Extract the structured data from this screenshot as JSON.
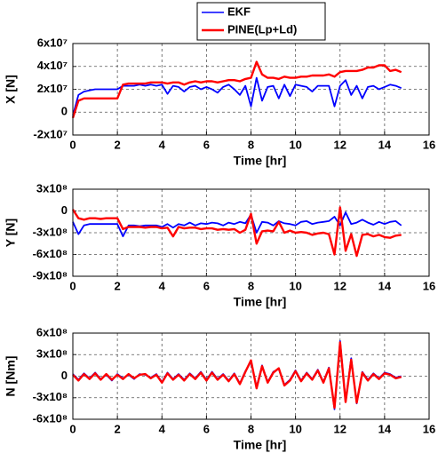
{
  "chart_data": [
    {
      "type": "line",
      "ylabel": "X [N]",
      "xlabel": "Time [hr]",
      "xlim": [
        0,
        16
      ],
      "xticks": [
        0,
        2,
        4,
        6,
        8,
        10,
        12,
        14,
        16
      ],
      "ylim": [
        -20000000.0,
        60000000.0
      ],
      "yticks": [
        {
          "value": -20000000.0,
          "label": "-2x10⁷"
        },
        0,
        {
          "value": 20000000.0,
          "label": "2x10⁷"
        },
        {
          "value": 40000000.0,
          "label": "4x10⁷"
        },
        {
          "value": 60000000.0,
          "label": "6x10⁷"
        }
      ],
      "grid": true,
      "x": [
        0,
        0.25,
        0.5,
        0.75,
        1,
        1.25,
        1.5,
        1.75,
        2,
        2.25,
        2.5,
        2.75,
        3,
        3.25,
        3.5,
        3.75,
        4,
        4.25,
        4.5,
        4.75,
        5,
        5.25,
        5.5,
        5.75,
        6,
        6.25,
        6.5,
        6.75,
        7,
        7.25,
        7.5,
        7.75,
        8,
        8.25,
        8.5,
        8.75,
        9,
        9.25,
        9.5,
        9.75,
        10,
        10.25,
        10.5,
        10.75,
        11,
        11.25,
        11.5,
        11.75,
        12,
        12.25,
        12.5,
        12.75,
        13,
        13.25,
        13.5,
        13.75,
        14,
        14.25,
        14.5,
        14.75
      ],
      "series": [
        {
          "name": "EKF",
          "color": "#0000ff",
          "values": [
            -3000000.0,
            15000000.0,
            18000000.0,
            19000000.0,
            20000000.0,
            20000000.0,
            20000000.0,
            20000000.0,
            20000000.0,
            23000000.0,
            23000000.0,
            23000000.0,
            24000000.0,
            23000000.0,
            24000000.0,
            23000000.0,
            24000000.0,
            16000000.0,
            23000000.0,
            22000000.0,
            18000000.0,
            22000000.0,
            23000000.0,
            20000000.0,
            22000000.0,
            20000000.0,
            17000000.0,
            22000000.0,
            24000000.0,
            20000000.0,
            15000000.0,
            23000000.0,
            5000000.0,
            30000000.0,
            10000000.0,
            22000000.0,
            23000000.0,
            12000000.0,
            24000000.0,
            14000000.0,
            24000000.0,
            23000000.0,
            22000000.0,
            18000000.0,
            23000000.0,
            23000000.0,
            23000000.0,
            5000000.0,
            23000000.0,
            28000000.0,
            15000000.0,
            23000000.0,
            12000000.0,
            22000000.0,
            23000000.0,
            20000000.0,
            22000000.0,
            24000000.0,
            23000000.0,
            21000000.0
          ]
        },
        {
          "name": "PINE(Lp+Ld)",
          "color": "#ff0000",
          "values": [
            -5000000.0,
            10000000.0,
            12000000.0,
            12000000.0,
            12000000.0,
            12000000.0,
            12000000.0,
            12000000.0,
            12000000.0,
            24000000.0,
            25000000.0,
            25000000.0,
            25000000.0,
            25000000.0,
            26000000.0,
            26000000.0,
            26000000.0,
            25000000.0,
            26000000.0,
            26000000.0,
            24000000.0,
            26000000.0,
            27000000.0,
            26000000.0,
            27000000.0,
            27000000.0,
            26000000.0,
            27000000.0,
            28000000.0,
            28000000.0,
            27000000.0,
            29000000.0,
            30000000.0,
            44000000.0,
            33000000.0,
            30000000.0,
            30000000.0,
            29000000.0,
            31000000.0,
            30000000.0,
            30000000.0,
            31000000.0,
            31000000.0,
            32000000.0,
            32000000.0,
            32000000.0,
            33000000.0,
            31000000.0,
            35000000.0,
            36000000.0,
            36000000.0,
            36000000.0,
            37000000.0,
            39000000.0,
            39000000.0,
            41000000.0,
            41000000.0,
            36000000.0,
            37000000.0,
            35000000.0
          ]
        }
      ]
    },
    {
      "type": "line",
      "ylabel": "Y [N]",
      "xlabel": "Time [hr]",
      "xlim": [
        0,
        16
      ],
      "xticks": [
        0,
        2,
        4,
        6,
        8,
        10,
        12,
        14,
        16
      ],
      "ylim": [
        -900000000.0,
        300000000.0
      ],
      "yticks": [
        {
          "value": -900000000.0,
          "label": "-9x10⁸"
        },
        {
          "value": -600000000.0,
          "label": "-6x10⁸"
        },
        {
          "value": -300000000.0,
          "label": "-3x10⁸"
        },
        0,
        {
          "value": 300000000.0,
          "label": "3x10⁸"
        }
      ],
      "grid": true,
      "x": [
        0,
        0.25,
        0.5,
        0.75,
        1,
        1.25,
        1.5,
        1.75,
        2,
        2.25,
        2.5,
        2.75,
        3,
        3.25,
        3.5,
        3.75,
        4,
        4.25,
        4.5,
        4.75,
        5,
        5.25,
        5.5,
        5.75,
        6,
        6.25,
        6.5,
        6.75,
        7,
        7.25,
        7.5,
        7.75,
        8,
        8.25,
        8.5,
        8.75,
        9,
        9.25,
        9.5,
        9.75,
        10,
        10.25,
        10.5,
        10.75,
        11,
        11.25,
        11.5,
        11.75,
        12,
        12.25,
        12.5,
        12.75,
        13,
        13.25,
        13.5,
        13.75,
        14,
        14.25,
        14.5,
        14.75
      ],
      "series": [
        {
          "color": "#0000ff",
          "values": [
            -150000000.0,
            -320000000.0,
            -200000000.0,
            -180000000.0,
            -180000000.0,
            -180000000.0,
            -180000000.0,
            -180000000.0,
            -180000000.0,
            -350000000.0,
            -200000000.0,
            -200000000.0,
            -210000000.0,
            -200000000.0,
            -200000000.0,
            -200000000.0,
            -220000000.0,
            -180000000.0,
            -230000000.0,
            -180000000.0,
            -200000000.0,
            -160000000.0,
            -200000000.0,
            -170000000.0,
            -180000000.0,
            -160000000.0,
            -170000000.0,
            -200000000.0,
            -160000000.0,
            -180000000.0,
            -150000000.0,
            -170000000.0,
            -50000000.0,
            -300000000.0,
            -150000000.0,
            -160000000.0,
            -200000000.0,
            -140000000.0,
            -170000000.0,
            -180000000.0,
            -200000000.0,
            -150000000.0,
            -140000000.0,
            -180000000.0,
            -160000000.0,
            -150000000.0,
            -140000000.0,
            -80000000.0,
            -200000000.0,
            -20000000.0,
            -180000000.0,
            -160000000.0,
            -120000000.0,
            -160000000.0,
            -190000000.0,
            -150000000.0,
            -180000000.0,
            -150000000.0,
            -140000000.0,
            -200000000.0
          ]
        },
        {
          "color": "#ff0000",
          "values": [
            20000000.0,
            -100000000.0,
            -120000000.0,
            -100000000.0,
            -100000000.0,
            -110000000.0,
            -100000000.0,
            -100000000.0,
            -100000000.0,
            -250000000.0,
            -220000000.0,
            -220000000.0,
            -220000000.0,
            -230000000.0,
            -220000000.0,
            -220000000.0,
            -240000000.0,
            -230000000.0,
            -350000000.0,
            -220000000.0,
            -240000000.0,
            -230000000.0,
            -230000000.0,
            -250000000.0,
            -240000000.0,
            -240000000.0,
            -260000000.0,
            -250000000.0,
            -260000000.0,
            -250000000.0,
            -300000000.0,
            -260000000.0,
            -40000000.0,
            -450000000.0,
            -280000000.0,
            -270000000.0,
            -280000000.0,
            -150000000.0,
            -300000000.0,
            -270000000.0,
            -300000000.0,
            -290000000.0,
            -300000000.0,
            -330000000.0,
            -310000000.0,
            -300000000.0,
            -320000000.0,
            -600000000.0,
            50000000.0,
            -550000000.0,
            -320000000.0,
            -620000000.0,
            -330000000.0,
            -320000000.0,
            -350000000.0,
            -330000000.0,
            -360000000.0,
            -370000000.0,
            -340000000.0,
            -330000000.0
          ]
        }
      ]
    },
    {
      "type": "line",
      "ylabel": "N [Nm]",
      "xlabel": "Time [hr]",
      "xlim": [
        0,
        16
      ],
      "xticks": [
        0,
        2,
        4,
        6,
        8,
        10,
        12,
        14,
        16
      ],
      "ylim": [
        -600000000.0,
        600000000.0
      ],
      "yticks": [
        {
          "value": -600000000.0,
          "label": "-6x10⁸"
        },
        {
          "value": -300000000.0,
          "label": "-3x10⁸"
        },
        0,
        {
          "value": 300000000.0,
          "label": "3x10⁸"
        },
        {
          "value": 600000000.0,
          "label": "6x10⁸"
        }
      ],
      "grid": true,
      "x": [
        0,
        0.25,
        0.5,
        0.75,
        1,
        1.25,
        1.5,
        1.75,
        2,
        2.25,
        2.5,
        2.75,
        3,
        3.25,
        3.5,
        3.75,
        4,
        4.25,
        4.5,
        4.75,
        5,
        5.25,
        5.5,
        5.75,
        6,
        6.25,
        6.5,
        6.75,
        7,
        7.25,
        7.5,
        7.75,
        8,
        8.25,
        8.5,
        8.75,
        9,
        9.25,
        9.5,
        9.75,
        10,
        10.25,
        10.5,
        10.75,
        11,
        11.25,
        11.5,
        11.75,
        12,
        12.25,
        12.5,
        12.75,
        13,
        13.25,
        13.5,
        13.75,
        14,
        14.25,
        14.5,
        14.75
      ],
      "series": [
        {
          "color": "#0000ff",
          "values": [
            30000000.0,
            -50000000.0,
            40000000.0,
            -30000000.0,
            50000000.0,
            -40000000.0,
            20000000.0,
            -60000000.0,
            30000000.0,
            -30000000.0,
            20000000.0,
            -40000000.0,
            30000000.0,
            20000000.0,
            -20000000.0,
            30000000.0,
            -80000000.0,
            50000000.0,
            -40000000.0,
            30000000.0,
            -50000000.0,
            40000000.0,
            -30000000.0,
            60000000.0,
            -50000000.0,
            60000000.0,
            -40000000.0,
            30000000.0,
            -60000000.0,
            40000000.0,
            -100000000.0,
            70000000.0,
            200000000.0,
            -150000000.0,
            150000000.0,
            -80000000.0,
            60000000.0,
            100000000.0,
            -120000000.0,
            -50000000.0,
            80000000.0,
            -60000000.0,
            50000000.0,
            -40000000.0,
            90000000.0,
            -80000000.0,
            120000000.0,
            -460000000.0,
            490000000.0,
            -350000000.0,
            250000000.0,
            -380000000.0,
            60000000.0,
            -50000000.0,
            40000000.0,
            -30000000.0,
            50000000.0,
            30000000.0,
            -20000000.0,
            0
          ]
        },
        {
          "color": "#ff0000",
          "values": [
            20000000.0,
            -60000000.0,
            30000000.0,
            -40000000.0,
            40000000.0,
            -50000000.0,
            30000000.0,
            -50000000.0,
            20000000.0,
            -40000000.0,
            30000000.0,
            -30000000.0,
            20000000.0,
            30000000.0,
            -30000000.0,
            20000000.0,
            -90000000.0,
            40000000.0,
            -50000000.0,
            20000000.0,
            -60000000.0,
            30000000.0,
            -40000000.0,
            50000000.0,
            -60000000.0,
            50000000.0,
            -50000000.0,
            20000000.0,
            -70000000.0,
            30000000.0,
            -110000000.0,
            60000000.0,
            220000000.0,
            -170000000.0,
            140000000.0,
            -90000000.0,
            50000000.0,
            110000000.0,
            -130000000.0,
            -60000000.0,
            70000000.0,
            -70000000.0,
            40000000.0,
            -50000000.0,
            80000000.0,
            -90000000.0,
            110000000.0,
            -440000000.0,
            470000000.0,
            -360000000.0,
            230000000.0,
            -370000000.0,
            50000000.0,
            -60000000.0,
            30000000.0,
            -40000000.0,
            40000000.0,
            20000000.0,
            -30000000.0,
            -10000000.0
          ]
        }
      ]
    }
  ]
}
